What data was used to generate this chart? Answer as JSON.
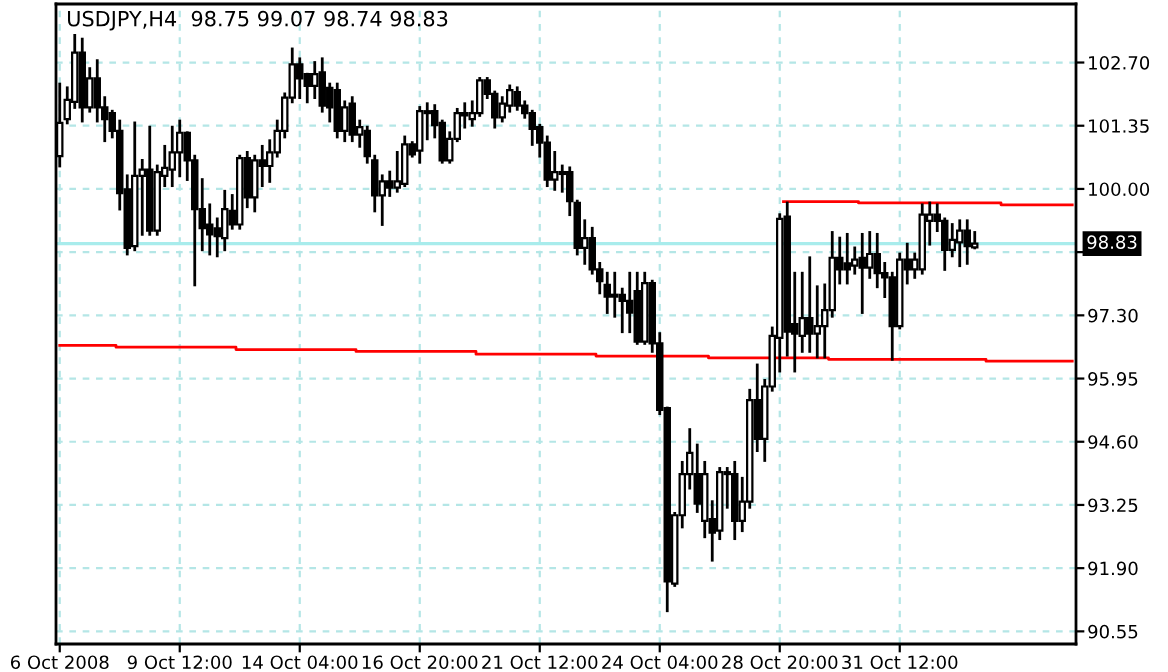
{
  "chart_data": {
    "type": "candlestick",
    "title": "USDJPY,H4  98.75 99.07 98.74 98.83",
    "categories": [
      "6 Oct 2008",
      null,
      null,
      null,
      null,
      null,
      null,
      null,
      null,
      null,
      null,
      null,
      null,
      null,
      null,
      null,
      "9 Oct 12:00",
      null,
      null,
      null,
      null,
      null,
      null,
      null,
      null,
      null,
      null,
      null,
      null,
      null,
      null,
      null,
      "14 Oct 04:00",
      null,
      null,
      null,
      null,
      null,
      null,
      null,
      null,
      null,
      null,
      null,
      null,
      null,
      null,
      null,
      "16 Oct 20:00",
      null,
      null,
      null,
      null,
      null,
      null,
      null,
      null,
      null,
      null,
      null,
      null,
      null,
      null,
      null,
      "21 Oct 12:00",
      null,
      null,
      null,
      null,
      null,
      null,
      null,
      null,
      null,
      null,
      null,
      null,
      null,
      null,
      null,
      "24 Oct 04:00",
      null,
      null,
      null,
      null,
      null,
      null,
      null,
      null,
      null,
      null,
      null,
      null,
      null,
      null,
      null,
      "28 Oct 20:00",
      null,
      null,
      null,
      null,
      null,
      null,
      null,
      null,
      null,
      null,
      null,
      null,
      null,
      null,
      null,
      "31 Oct 12:00",
      null,
      null,
      null,
      null,
      null,
      null,
      null,
      null,
      null,
      null,
      null,
      null,
      null,
      null,
      null,
      null,
      null,
      null,
      null,
      null,
      null,
      null,
      null
    ],
    "ohlc": [
      [
        100.7,
        102.24,
        100.49,
        101.41
      ],
      [
        101.49,
        102.16,
        101.41,
        101.9
      ],
      [
        101.86,
        103.28,
        101.74,
        102.91
      ],
      [
        102.91,
        103.2,
        101.45,
        101.74
      ],
      [
        101.74,
        102.57,
        101.66,
        102.36
      ],
      [
        102.36,
        102.74,
        101.45,
        101.74
      ],
      [
        101.74,
        101.95,
        101.03,
        101.49
      ],
      [
        101.62,
        101.66,
        101.11,
        101.24
      ],
      [
        101.24,
        101.45,
        99.57,
        99.91
      ],
      [
        99.99,
        100.28,
        98.61,
        98.74
      ],
      [
        98.78,
        101.41,
        98.7,
        100.28
      ],
      [
        100.28,
        100.61,
        99.03,
        100.41
      ],
      [
        100.41,
        101.32,
        99.03,
        99.11
      ],
      [
        99.11,
        100.49,
        99.03,
        100.36
      ],
      [
        100.28,
        100.91,
        100.07,
        100.45
      ],
      [
        100.41,
        101.32,
        100.07,
        100.78
      ],
      [
        100.78,
        101.45,
        100.28,
        101.2
      ],
      [
        101.2,
        101.2,
        100.2,
        100.61
      ],
      [
        100.61,
        100.7,
        97.95,
        99.57
      ],
      [
        99.57,
        100.2,
        98.7,
        99.16
      ],
      [
        99.24,
        99.66,
        98.61,
        99.03
      ],
      [
        99.16,
        99.36,
        98.57,
        98.99
      ],
      [
        98.95,
        99.95,
        98.7,
        99.57
      ],
      [
        99.53,
        99.86,
        99.16,
        99.24
      ],
      [
        99.24,
        100.7,
        99.16,
        100.66
      ],
      [
        100.66,
        100.78,
        99.62,
        99.82
      ],
      [
        99.82,
        100.7,
        99.53,
        100.61
      ],
      [
        100.61,
        100.91,
        100.07,
        100.49
      ],
      [
        100.49,
        101.03,
        100.16,
        100.78
      ],
      [
        100.78,
        101.45,
        100.7,
        101.24
      ],
      [
        101.24,
        102.03,
        101.11,
        101.95
      ],
      [
        101.95,
        102.99,
        101.86,
        102.66
      ],
      [
        102.66,
        102.78,
        101.95,
        102.36
      ],
      [
        102.45,
        102.45,
        101.86,
        102.2
      ],
      [
        102.2,
        102.7,
        101.95,
        102.45
      ],
      [
        102.49,
        102.78,
        101.66,
        101.78
      ],
      [
        102.16,
        102.24,
        101.45,
        101.74
      ],
      [
        102.11,
        102.24,
        101.11,
        101.24
      ],
      [
        101.24,
        101.86,
        101.03,
        101.74
      ],
      [
        101.82,
        101.95,
        101.03,
        101.16
      ],
      [
        101.16,
        101.45,
        100.91,
        101.32
      ],
      [
        101.24,
        101.32,
        100.57,
        100.7
      ],
      [
        100.61,
        100.7,
        99.53,
        99.86
      ],
      [
        99.86,
        100.28,
        99.24,
        100.16
      ],
      [
        100.16,
        100.36,
        99.86,
        100.03
      ],
      [
        100.03,
        100.78,
        99.95,
        100.16
      ],
      [
        100.11,
        101.11,
        100.07,
        100.95
      ],
      [
        100.95,
        100.99,
        100.7,
        100.74
      ],
      [
        100.82,
        101.74,
        100.57,
        101.66
      ],
      [
        101.66,
        101.82,
        101.07,
        101.62
      ],
      [
        101.66,
        101.78,
        101.11,
        101.36
      ],
      [
        101.41,
        101.45,
        100.57,
        100.61
      ],
      [
        100.61,
        101.2,
        100.57,
        101.07
      ],
      [
        101.07,
        101.7,
        101.03,
        101.62
      ],
      [
        101.62,
        101.82,
        101.32,
        101.57
      ],
      [
        101.49,
        101.86,
        101.36,
        101.62
      ],
      [
        101.62,
        102.36,
        101.57,
        102.32
      ],
      [
        102.32,
        102.36,
        101.95,
        102.03
      ],
      [
        102.03,
        102.07,
        101.32,
        101.53
      ],
      [
        101.53,
        101.95,
        101.45,
        101.82
      ],
      [
        101.78,
        102.2,
        101.66,
        102.11
      ],
      [
        102.07,
        102.16,
        101.7,
        101.78
      ],
      [
        101.78,
        101.86,
        101.53,
        101.62
      ],
      [
        101.62,
        101.66,
        100.95,
        101.28
      ],
      [
        101.32,
        101.36,
        100.7,
        100.99
      ],
      [
        100.99,
        101.11,
        100.07,
        100.2
      ],
      [
        100.2,
        100.78,
        99.99,
        100.36
      ],
      [
        100.36,
        100.49,
        99.95,
        100.32
      ],
      [
        100.36,
        100.45,
        99.45,
        99.74
      ],
      [
        99.7,
        99.74,
        98.61,
        98.74
      ],
      [
        98.74,
        99.32,
        98.41,
        98.95
      ],
      [
        98.95,
        99.16,
        98.2,
        98.28
      ],
      [
        98.28,
        98.41,
        97.78,
        98.03
      ],
      [
        97.95,
        98.2,
        97.36,
        97.7
      ],
      [
        97.7,
        98.2,
        97.28,
        97.74
      ],
      [
        97.74,
        97.86,
        96.95,
        97.61
      ],
      [
        97.61,
        98.2,
        96.95,
        97.36
      ],
      [
        97.82,
        98.2,
        96.7,
        96.74
      ],
      [
        96.74,
        98.2,
        96.7,
        97.99
      ],
      [
        97.99,
        98.03,
        96.53,
        96.7
      ],
      [
        96.7,
        96.91,
        95.2,
        95.28
      ],
      [
        95.32,
        95.32,
        90.99,
        91.62
      ],
      [
        91.57,
        93.07,
        91.53,
        93.03
      ],
      [
        93.03,
        94.16,
        92.78,
        93.91
      ],
      [
        93.91,
        94.86,
        93.61,
        94.36
      ],
      [
        93.91,
        94.53,
        93.11,
        93.28
      ],
      [
        92.91,
        94.16,
        92.57,
        93.91
      ],
      [
        92.95,
        93.32,
        92.07,
        92.66
      ],
      [
        92.7,
        94.03,
        92.53,
        93.95
      ],
      [
        93.91,
        94.03,
        93.2,
        93.95
      ],
      [
        93.91,
        94.16,
        92.53,
        92.91
      ],
      [
        92.91,
        93.82,
        92.7,
        93.32
      ],
      [
        93.32,
        95.7,
        93.2,
        95.49
      ],
      [
        95.49,
        96.24,
        94.41,
        94.66
      ],
      [
        94.66,
        95.91,
        94.2,
        95.78
      ],
      [
        95.78,
        97.03,
        95.7,
        96.86
      ],
      [
        96.82,
        99.45,
        96.11,
        99.36
      ],
      [
        99.41,
        99.7,
        96.45,
        96.95
      ],
      [
        97.11,
        98.2,
        96.11,
        96.91
      ],
      [
        96.86,
        98.2,
        96.53,
        97.24
      ],
      [
        97.24,
        98.53,
        96.53,
        96.91
      ],
      [
        96.91,
        97.91,
        96.41,
        97.07
      ],
      [
        97.07,
        97.95,
        96.41,
        97.41
      ],
      [
        97.41,
        99.07,
        97.28,
        98.53
      ],
      [
        98.53,
        98.95,
        97.99,
        98.28
      ],
      [
        98.41,
        99.03,
        97.99,
        98.28
      ],
      [
        98.36,
        98.74,
        98.2,
        98.49
      ],
      [
        98.53,
        99.03,
        97.36,
        98.32
      ],
      [
        98.32,
        99.07,
        98.11,
        98.61
      ],
      [
        98.61,
        99.03,
        97.91,
        98.2
      ],
      [
        98.2,
        98.41,
        97.7,
        98.11
      ],
      [
        98.11,
        98.2,
        96.36,
        97.07
      ],
      [
        97.07,
        98.61,
        97.03,
        98.49
      ],
      [
        98.49,
        98.82,
        97.99,
        98.28
      ],
      [
        98.28,
        98.61,
        98.11,
        98.49
      ],
      [
        98.28,
        99.66,
        98.2,
        99.45
      ],
      [
        99.32,
        99.7,
        98.82,
        99.45
      ],
      [
        99.45,
        99.66,
        99.11,
        99.32
      ],
      [
        99.32,
        99.36,
        98.28,
        98.7
      ],
      [
        98.7,
        99.24,
        98.57,
        98.91
      ],
      [
        98.86,
        99.32,
        98.36,
        99.11
      ],
      [
        99.11,
        99.32,
        98.41,
        98.78
      ],
      [
        98.75,
        99.07,
        98.74,
        98.83
      ],
      null,
      null,
      null,
      null,
      null,
      null,
      null,
      null,
      null,
      null,
      null,
      null,
      null
    ],
    "series": [
      {
        "type": "step",
        "color": "#ff0000",
        "values": [
          96.66,
          96.66,
          96.66,
          96.66,
          96.66,
          96.66,
          96.66,
          96.66,
          96.62,
          96.62,
          96.62,
          96.62,
          96.62,
          96.62,
          96.62,
          96.62,
          96.62,
          96.62,
          96.62,
          96.62,
          96.62,
          96.62,
          96.62,
          96.62,
          96.57,
          96.57,
          96.57,
          96.57,
          96.57,
          96.57,
          96.57,
          96.57,
          96.57,
          96.57,
          96.57,
          96.57,
          96.57,
          96.57,
          96.57,
          96.57,
          96.53,
          96.53,
          96.53,
          96.53,
          96.53,
          96.53,
          96.53,
          96.53,
          96.53,
          96.53,
          96.53,
          96.53,
          96.53,
          96.53,
          96.53,
          96.53,
          96.47,
          96.47,
          96.47,
          96.47,
          96.47,
          96.47,
          96.47,
          96.47,
          96.47,
          96.47,
          96.47,
          96.47,
          96.47,
          96.47,
          96.47,
          96.47,
          96.43,
          96.43,
          96.43,
          96.43,
          96.43,
          96.43,
          96.43,
          96.43,
          96.43,
          96.43,
          96.43,
          96.43,
          96.43,
          96.43,
          96.43,
          96.39,
          96.39,
          96.39,
          96.39,
          96.39,
          96.39,
          96.39,
          96.39,
          96.39,
          96.39,
          96.39,
          96.39,
          96.39,
          96.39,
          96.39,
          96.39,
          96.36,
          96.36,
          96.36,
          96.36,
          96.36,
          96.36,
          96.36,
          96.36,
          96.36,
          96.36,
          96.36,
          96.36,
          96.36,
          96.36,
          96.36,
          96.36,
          96.36,
          96.36,
          96.36,
          96.36,
          96.36,
          96.32,
          96.32,
          96.32,
          96.32,
          96.32,
          96.32,
          96.32,
          96.32,
          96.32,
          96.32,
          96.32,
          96.32
        ]
      },
      {
        "type": "step",
        "color": "#ff0000",
        "values": [
          null,
          null,
          null,
          null,
          null,
          null,
          null,
          null,
          null,
          null,
          null,
          null,
          null,
          null,
          null,
          null,
          null,
          null,
          null,
          null,
          null,
          null,
          null,
          null,
          null,
          null,
          null,
          null,
          null,
          null,
          null,
          null,
          null,
          null,
          null,
          null,
          null,
          null,
          null,
          null,
          null,
          null,
          null,
          null,
          null,
          null,
          null,
          null,
          null,
          null,
          null,
          null,
          null,
          null,
          null,
          null,
          null,
          null,
          null,
          null,
          null,
          null,
          null,
          null,
          null,
          null,
          null,
          null,
          null,
          null,
          null,
          null,
          null,
          null,
          null,
          null,
          null,
          null,
          null,
          null,
          null,
          null,
          null,
          null,
          null,
          null,
          null,
          null,
          null,
          null,
          null,
          null,
          null,
          null,
          null,
          null,
          null,
          99.73,
          99.73,
          99.73,
          99.73,
          99.73,
          99.73,
          99.73,
          99.73,
          99.73,
          99.73,
          99.7,
          99.7,
          99.7,
          99.7,
          99.7,
          99.7,
          99.7,
          99.7,
          99.7,
          99.7,
          99.7,
          99.7,
          99.7,
          99.7,
          99.7,
          99.7,
          99.7,
          99.7,
          99.7,
          99.66,
          99.66,
          99.66,
          99.66,
          99.66,
          99.66,
          99.66,
          99.66,
          99.66,
          99.66
        ]
      }
    ],
    "ylim": [
      90.28,
      103.95
    ],
    "yticks": [
      {
        "value": 90.55,
        "label": "90.55"
      },
      {
        "value": 91.9,
        "label": "91.90"
      },
      {
        "value": 93.25,
        "label": "93.25"
      },
      {
        "value": 94.6,
        "label": "94.60"
      },
      {
        "value": 95.95,
        "label": "95.95"
      },
      {
        "value": 97.3,
        "label": "97.30"
      },
      {
        "value": 98.65,
        "label": null
      },
      {
        "value": 100.0,
        "label": "100.00"
      },
      {
        "value": 101.35,
        "label": "101.35"
      },
      {
        "value": 102.7,
        "label": "102.70"
      }
    ],
    "ref_lines": [
      {
        "axis": "y",
        "value": 98.83,
        "label": "98.83",
        "color": "#a8ecec"
      }
    ],
    "grid": true,
    "legend": false
  }
}
